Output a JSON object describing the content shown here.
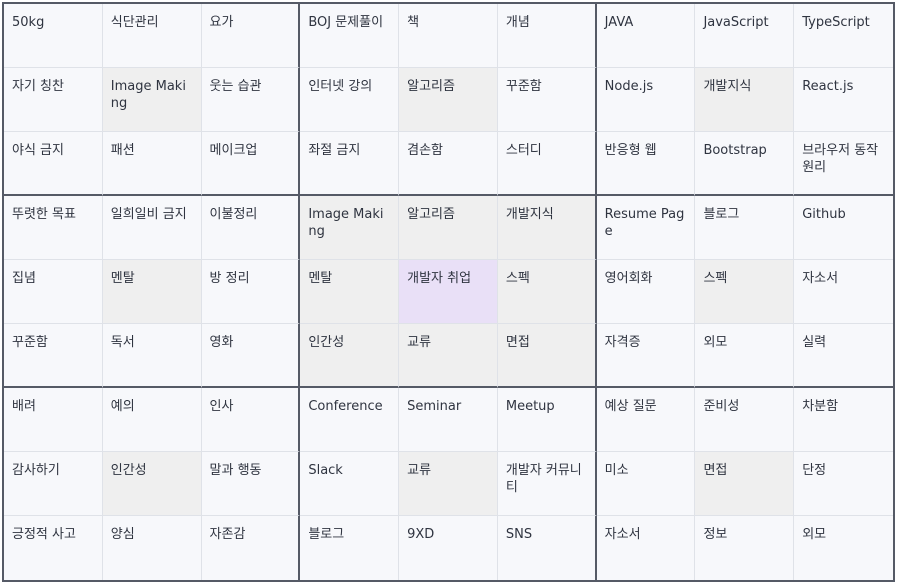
{
  "rows": [
    [
      "50kg",
      "식단관리",
      "요가",
      "BOJ 문제풀이",
      "책",
      "개념",
      "JAVA",
      "JavaScript",
      "TypeScript"
    ],
    [
      "자기 칭찬",
      "Image Making",
      "웃는 습관",
      "인터넷 강의",
      "알고리즘",
      "꾸준함",
      "Node.js",
      "개발지식",
      "React.js"
    ],
    [
      "야식 금지",
      "패션",
      "메이크업",
      "좌절 금지",
      "겸손함",
      "스터디",
      "반응형 웹",
      "Bootstrap",
      "브라우저 동작원리"
    ],
    [
      "뚜렷한 목표",
      "일희일비 금지",
      "이불정리",
      "Image Making",
      "알고리즘",
      "개발지식",
      "Resume Page",
      "블로그",
      "Github"
    ],
    [
      "집념",
      "멘탈",
      "방 정리",
      "멘탈",
      "개발자 취업",
      "스펙",
      "영어회화",
      "스펙",
      "자소서"
    ],
    [
      "꾸준함",
      "독서",
      "영화",
      "인간성",
      "교류",
      "면접",
      "자격증",
      "외모",
      "실력"
    ],
    [
      "배려",
      "예의",
      "인사",
      "Conference",
      "Seminar",
      "Meetup",
      "예상 질문",
      "준비성",
      "차분함"
    ],
    [
      "감사하기",
      "인간성",
      "말과 행동",
      "Slack",
      "교류",
      "개발자 커뮤니티",
      "미소",
      "면접",
      "단정"
    ],
    [
      "긍정적 사고",
      "양심",
      "자존감",
      "블로그",
      "9XD",
      "SNS",
      "자소서",
      "정보",
      "외모"
    ]
  ],
  "colors": {
    "background": "#f7f8fb",
    "highlight": "#efefef",
    "core": "#e9e0f7",
    "block_border": "#555a66",
    "grid_line": "#dfe2e8",
    "text": "#2f3440"
  }
}
